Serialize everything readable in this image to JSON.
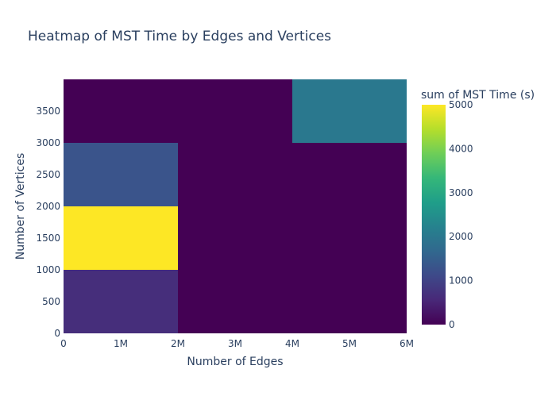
{
  "chart_data": {
    "type": "heatmap",
    "title": "Heatmap of MST Time by Edges and Vertices",
    "xlabel": "Number of Edges",
    "ylabel": "Number of Vertices",
    "x_bins": [
      [
        0,
        2000000
      ],
      [
        2000000,
        4000000
      ],
      [
        4000000,
        6000000
      ]
    ],
    "y_bins": [
      [
        0,
        1000
      ],
      [
        1000,
        2000
      ],
      [
        2000,
        3000
      ],
      [
        3000,
        4000
      ]
    ],
    "z": [
      [
        650,
        0,
        0
      ],
      [
        5000,
        0,
        0
      ],
      [
        1300,
        0,
        0
      ],
      [
        0,
        0,
        2000
      ]
    ],
    "xlim": [
      0,
      6000000
    ],
    "ylim": [
      0,
      4000
    ],
    "x_ticks": [
      {
        "value": 0,
        "label": "0"
      },
      {
        "value": 1000000,
        "label": "1M"
      },
      {
        "value": 2000000,
        "label": "2M"
      },
      {
        "value": 3000000,
        "label": "3M"
      },
      {
        "value": 4000000,
        "label": "4M"
      },
      {
        "value": 5000000,
        "label": "5M"
      },
      {
        "value": 6000000,
        "label": "6M"
      }
    ],
    "y_ticks": [
      {
        "value": 0,
        "label": "0"
      },
      {
        "value": 500,
        "label": "500"
      },
      {
        "value": 1000,
        "label": "1000"
      },
      {
        "value": 1500,
        "label": "1500"
      },
      {
        "value": 2000,
        "label": "2000"
      },
      {
        "value": 2500,
        "label": "2500"
      },
      {
        "value": 3000,
        "label": "3000"
      },
      {
        "value": 3500,
        "label": "3500"
      }
    ],
    "colorbar": {
      "title": "sum of MST Time (s)",
      "range": [
        0,
        5000
      ],
      "ticks": [
        {
          "value": 0,
          "label": "0"
        },
        {
          "value": 1000,
          "label": "1000"
        },
        {
          "value": 2000,
          "label": "2000"
        },
        {
          "value": 3000,
          "label": "3000"
        },
        {
          "value": 4000,
          "label": "4000"
        },
        {
          "value": 5000,
          "label": "5000"
        }
      ],
      "colorscale": [
        "#440154",
        "#482878",
        "#3e4989",
        "#31688e",
        "#26828e",
        "#1f9e89",
        "#35b779",
        "#6ece58",
        "#b5de2b",
        "#fde725"
      ]
    },
    "grid": false
  }
}
